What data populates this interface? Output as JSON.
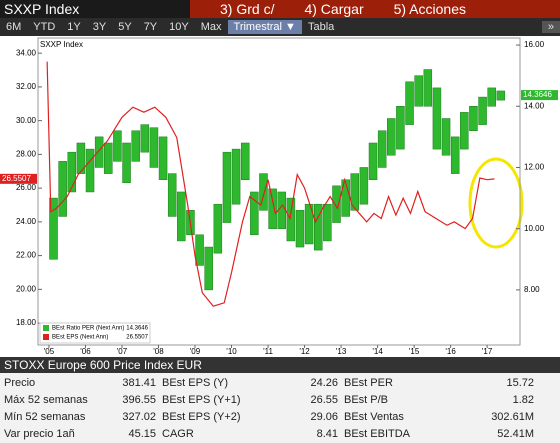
{
  "header": {
    "title": "SXXP Index",
    "buttons": [
      "3) Grd c/",
      "4) Cargar",
      "5) Acciones"
    ]
  },
  "toolbar": {
    "ranges": [
      "6M",
      "YTD",
      "1Y",
      "3Y",
      "5Y",
      "7Y",
      "10Y",
      "Max"
    ],
    "period": "Trimestral ▼",
    "view": "Tabla",
    "more": "»"
  },
  "chart_data": {
    "type": "bar-line",
    "title": "SXXP Index",
    "xlim": [
      2004.7,
      2017.9
    ],
    "xticks": [
      {
        "value": 2005,
        "label": "'05"
      },
      {
        "value": 2006,
        "label": "'06"
      },
      {
        "value": 2007,
        "label": "'07"
      },
      {
        "value": 2008,
        "label": "'08"
      },
      {
        "value": 2009,
        "label": "'09"
      },
      {
        "value": 2010,
        "label": "'10"
      },
      {
        "value": 2011,
        "label": "'11"
      },
      {
        "value": 2012,
        "label": "'12"
      },
      {
        "value": 2013,
        "label": "'13"
      },
      {
        "value": 2014,
        "label": "'14"
      },
      {
        "value": 2015,
        "label": "'15"
      },
      {
        "value": 2016,
        "label": "'16"
      },
      {
        "value": 2017,
        "label": "'17"
      }
    ],
    "ylim": [
      16.7,
      34.9
    ],
    "yticks": [
      {
        "value": 20,
        "label": "20.00"
      },
      {
        "value": 22,
        "label": "22.00"
      },
      {
        "value": 24,
        "label": "24.00"
      },
      {
        "value": 26,
        "label": "26.00"
      },
      {
        "value": 28,
        "label": "28.00"
      },
      {
        "value": 30,
        "label": "30.00"
      },
      {
        "value": 32,
        "label": "32.00"
      },
      {
        "value": 34,
        "label": "34.00"
      },
      {
        "value": 18,
        "label": "18.00"
      }
    ],
    "y2lim": [
      6.2,
      16.23
    ],
    "y2ticks": [
      {
        "value": 8,
        "label": "8.00"
      },
      {
        "value": 10,
        "label": "10.00"
      },
      {
        "value": 12,
        "label": "12.00"
      },
      {
        "value": 14,
        "label": "14.00"
      },
      {
        "value": 16,
        "label": "16.00"
      }
    ],
    "series": [
      {
        "name": "BEst Ratio PER (Next Ann)",
        "last": 14.3646,
        "color": "#2eb82e",
        "axis": "y2",
        "x": [
          2005.125,
          2005.375,
          2005.625,
          2005.875,
          2006.125,
          2006.375,
          2006.625,
          2006.875,
          2007.125,
          2007.375,
          2007.625,
          2007.875,
          2008.125,
          2008.375,
          2008.625,
          2008.875,
          2009.125,
          2009.375,
          2009.625,
          2009.875,
          2010.125,
          2010.375,
          2010.625,
          2010.875,
          2011.125,
          2011.375,
          2011.625,
          2011.875,
          2012.125,
          2012.375,
          2012.625,
          2012.875,
          2013.125,
          2013.375,
          2013.625,
          2013.875,
          2014.125,
          2014.375,
          2014.625,
          2014.875,
          2015.125,
          2015.375,
          2015.625,
          2015.875,
          2016.125,
          2016.375,
          2016.625,
          2016.875,
          2017.125,
          2017.375
        ],
        "values": [
          [
            9.0,
            11.0
          ],
          [
            10.4,
            12.2
          ],
          [
            11.2,
            12.5
          ],
          [
            11.8,
            12.8
          ],
          [
            11.2,
            12.6
          ],
          [
            12.0,
            13.0
          ],
          [
            11.8,
            12.8
          ],
          [
            12.2,
            13.2
          ],
          [
            11.5,
            12.8
          ],
          [
            12.2,
            13.2
          ],
          [
            12.5,
            13.4
          ],
          [
            12.0,
            13.3
          ],
          [
            11.6,
            13.0
          ],
          [
            10.4,
            11.8
          ],
          [
            9.6,
            11.2
          ],
          [
            9.8,
            10.6
          ],
          [
            8.8,
            9.8
          ],
          [
            8.0,
            9.4
          ],
          [
            9.2,
            10.8
          ],
          [
            10.2,
            12.5
          ],
          [
            10.8,
            12.6
          ],
          [
            11.6,
            12.8
          ],
          [
            9.8,
            11.2
          ],
          [
            10.6,
            11.8
          ],
          [
            10.0,
            11.3
          ],
          [
            10.0,
            11.2
          ],
          [
            9.6,
            11.0
          ],
          [
            9.4,
            10.6
          ],
          [
            9.5,
            10.8
          ],
          [
            9.3,
            10.8
          ],
          [
            9.6,
            10.8
          ],
          [
            10.2,
            11.4
          ],
          [
            10.4,
            11.6
          ],
          [
            10.6,
            11.8
          ],
          [
            10.8,
            12.0
          ],
          [
            11.6,
            12.8
          ],
          [
            12.0,
            13.2
          ],
          [
            12.4,
            13.6
          ],
          [
            12.6,
            14.0
          ],
          [
            13.4,
            14.8
          ],
          [
            14.0,
            15.0
          ],
          [
            14.0,
            15.2
          ],
          [
            12.6,
            14.6
          ],
          [
            12.4,
            13.6
          ],
          [
            11.8,
            13.0
          ],
          [
            12.6,
            13.8
          ],
          [
            13.2,
            14.0
          ],
          [
            13.4,
            14.3
          ],
          [
            14.0,
            14.6
          ],
          [
            14.2,
            14.5
          ]
        ]
      },
      {
        "name": "BEst EPS (Next Ann)",
        "last": 26.5507,
        "color": "#e02020",
        "axis": "y",
        "x": [
          2004.95,
          2005.05,
          2005.2,
          2005.5,
          2005.8,
          2006.2,
          2006.6,
          2007.0,
          2007.3,
          2007.6,
          2007.9,
          2008.2,
          2008.5,
          2008.8,
          2009.0,
          2009.2,
          2009.5,
          2009.8,
          2010.0,
          2010.3,
          2010.5,
          2010.8,
          2011.0,
          2011.2,
          2011.4,
          2011.6,
          2011.8,
          2012.0,
          2012.3,
          2012.5,
          2012.7,
          2012.9,
          2013.1,
          2013.3,
          2013.5,
          2013.7,
          2013.9,
          2014.1,
          2014.3,
          2014.5,
          2014.7,
          2014.9,
          2015.1,
          2015.3,
          2015.6,
          2015.9,
          2016.1,
          2016.4,
          2016.6,
          2016.8,
          2017.0,
          2017.2
        ],
        "values": [
          33.5,
          24.6,
          24.8,
          25.5,
          26.8,
          27.8,
          28.8,
          30.2,
          30.8,
          30.5,
          30.8,
          30.2,
          29.0,
          25.0,
          22.0,
          19.8,
          19.0,
          19.2,
          21.0,
          24.0,
          25.5,
          25.0,
          26.5,
          24.5,
          25.0,
          24.2,
          26.8,
          26.0,
          24.0,
          24.8,
          25.5,
          24.8,
          26.5,
          25.0,
          24.5,
          24.0,
          24.5,
          24.2,
          25.5,
          24.4,
          25.4,
          24.5,
          25.8,
          24.6,
          24.2,
          23.8,
          24.0,
          23.6,
          24.2,
          26.6,
          26.5,
          26.55
        ]
      }
    ]
  },
  "table": {
    "title": "STOXX Europe 600 Price Index EUR",
    "rows": [
      [
        "Precio",
        "381.41",
        "BEst EPS (Y)",
        "24.26",
        "BEst PER",
        "15.72"
      ],
      [
        "Máx 52 semanas",
        "396.55",
        "BEst EPS (Y+1)",
        "26.55",
        "BEst P/B",
        "1.82"
      ],
      [
        "Mín 52 semanas",
        "327.02",
        "BEst EPS (Y+2)",
        "29.06",
        "BEst Ventas",
        "302.61M"
      ],
      [
        "Var precio 1añ",
        "45.15",
        "CAGR",
        "8.41",
        "BEst EBITDA",
        "52.41M"
      ]
    ]
  }
}
